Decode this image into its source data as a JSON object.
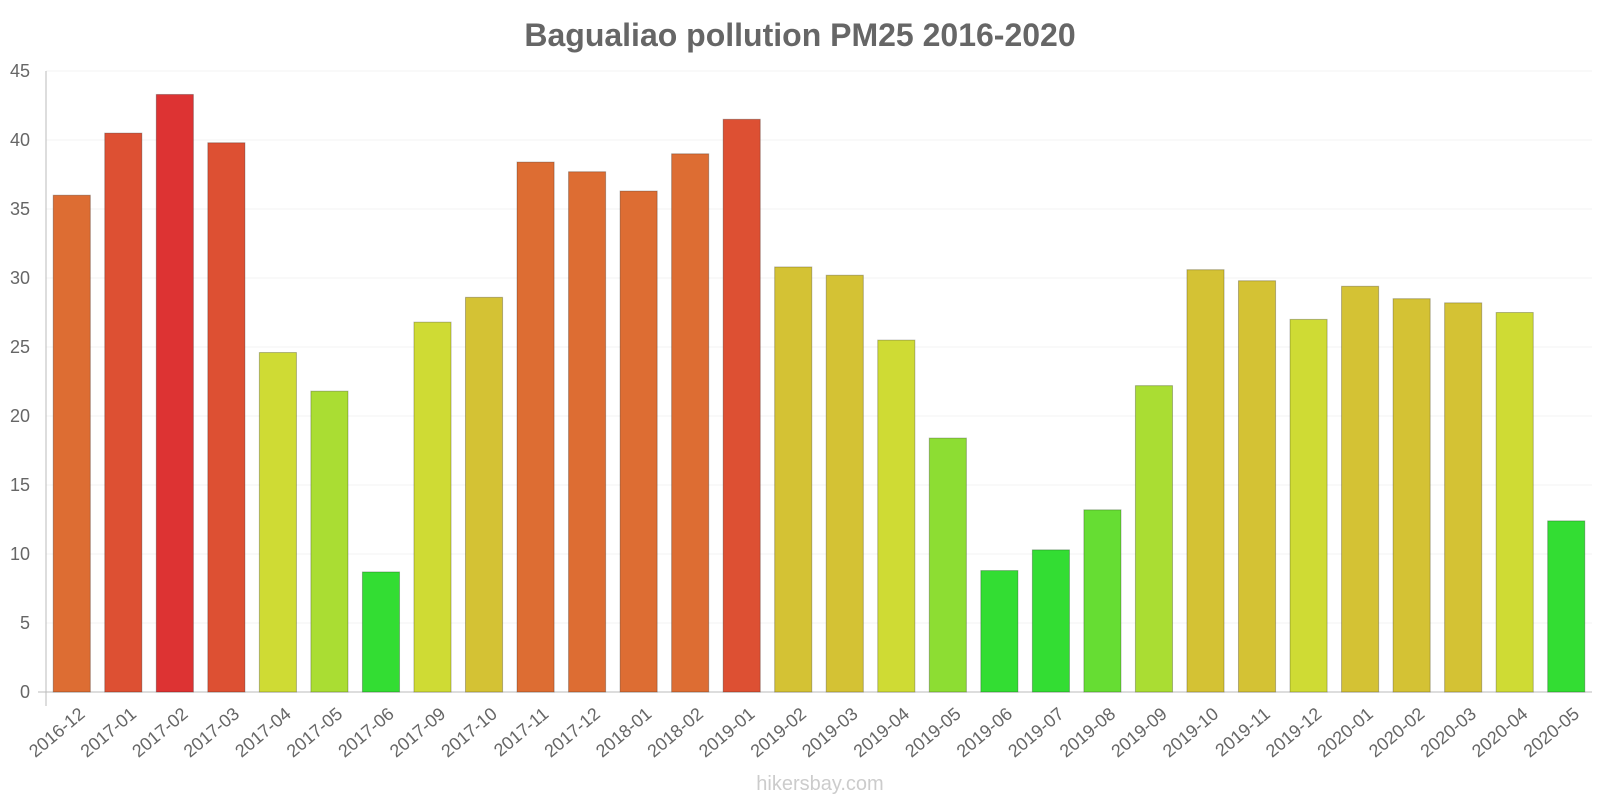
{
  "chart_data": {
    "type": "bar",
    "title": "Bagualiao pollution PM25 2016-2020",
    "xlabel": "",
    "ylabel": "",
    "ylim": [
      0,
      45
    ],
    "yticks": [
      0,
      5,
      10,
      15,
      20,
      25,
      30,
      35,
      40,
      45
    ],
    "grid": true,
    "categories": [
      "2016-12",
      "2017-01",
      "2017-02",
      "2017-03",
      "2017-04",
      "2017-05",
      "2017-06",
      "2017-09",
      "2017-10",
      "2017-11",
      "2017-12",
      "2018-01",
      "2018-02",
      "2019-01",
      "2019-02",
      "2019-03",
      "2019-04",
      "2019-05",
      "2019-06",
      "2019-07",
      "2019-08",
      "2019-09",
      "2019-10",
      "2019-11",
      "2019-12",
      "2020-01",
      "2020-02",
      "2020-03",
      "2020-04",
      "2020-05"
    ],
    "values": [
      36,
      40.5,
      43.3,
      39.8,
      24.6,
      21.8,
      8.7,
      26.8,
      28.6,
      38.4,
      37.7,
      36.3,
      39,
      41.5,
      30.8,
      30.2,
      25.5,
      18.4,
      8.8,
      10.3,
      13.2,
      22.2,
      30.6,
      29.8,
      27,
      29.4,
      28.5,
      28.2,
      27.5,
      12.4
    ],
    "bar_colors": [
      "#dd6d33",
      "#dd5033",
      "#dd3333",
      "#dd5033",
      "#cfdb34",
      "#aadd33",
      "#33dd33",
      "#cfdb34",
      "#d4c234",
      "#dd6d33",
      "#dd6d33",
      "#dd6d33",
      "#dd6d33",
      "#dd5033",
      "#d4c234",
      "#d4c234",
      "#cfdb34",
      "#8ddd33",
      "#33dd33",
      "#33dd33",
      "#66dd33",
      "#aadd33",
      "#d4c234",
      "#d4c234",
      "#cfdb34",
      "#d4c234",
      "#d4c234",
      "#d4c234",
      "#cfdb34",
      "#33dd33"
    ]
  },
  "watermark": "hikersbay.com"
}
